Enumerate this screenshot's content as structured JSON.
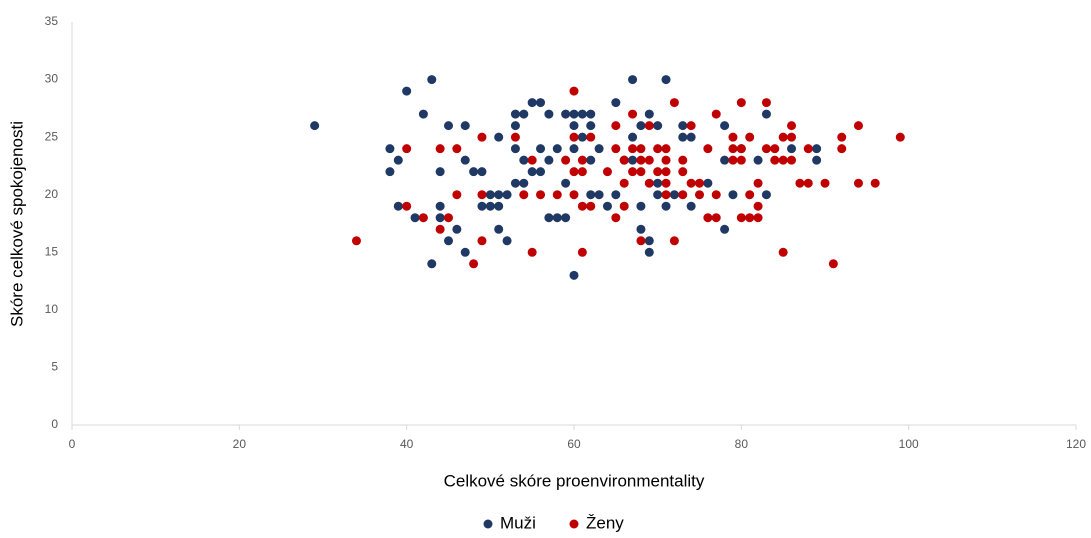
{
  "chart_data": {
    "type": "scatter",
    "x_label": "Celkové skóre proenvironmentality",
    "y_label": "Skóre celkové spokojenosti",
    "xlim": [
      0,
      120
    ],
    "xticks": [
      0,
      20,
      40,
      60,
      80,
      100,
      120
    ],
    "ylim": [
      0,
      35
    ],
    "yticks": [
      0,
      5,
      10,
      15,
      20,
      25,
      30,
      35
    ],
    "legend": "bottom",
    "series": [
      {
        "name": "Muži",
        "color": "#1f3864",
        "x": [
          29,
          38,
          38,
          39,
          39,
          40,
          41,
          42,
          43,
          43,
          44,
          44,
          44,
          45,
          45,
          46,
          47,
          47,
          47,
          48,
          49,
          49,
          50,
          50,
          51,
          51,
          51,
          51,
          52,
          52,
          53,
          53,
          53,
          53,
          54,
          54,
          54,
          55,
          55,
          56,
          56,
          56,
          57,
          57,
          57,
          58,
          58,
          59,
          59,
          59,
          60,
          60,
          60,
          60,
          61,
          61,
          62,
          62,
          62,
          62,
          63,
          63,
          64,
          65,
          65,
          66,
          67,
          67,
          67,
          68,
          68,
          68,
          69,
          69,
          69,
          70,
          70,
          70,
          71,
          71,
          72,
          73,
          73,
          74,
          74,
          76,
          78,
          78,
          78,
          79,
          80,
          82,
          83,
          83,
          86,
          89,
          89
        ],
        "values": [
          26,
          24,
          22,
          23,
          19,
          29,
          18,
          27,
          30,
          14,
          22,
          19,
          18,
          26,
          16,
          17,
          26,
          23,
          15,
          22,
          22,
          19,
          19,
          20,
          25,
          19,
          17,
          20,
          16,
          20,
          27,
          26,
          24,
          21,
          27,
          23,
          21,
          28,
          22,
          28,
          22,
          24,
          27,
          23,
          18,
          18,
          24,
          18,
          27,
          21,
          27,
          26,
          24,
          13,
          27,
          25,
          27,
          26,
          20,
          23,
          20,
          24,
          19,
          28,
          20,
          23,
          30,
          25,
          23,
          26,
          17,
          19,
          27,
          16,
          15,
          26,
          20,
          21,
          30,
          19,
          20,
          26,
          25,
          25,
          19,
          21,
          26,
          23,
          17,
          20,
          24,
          23,
          27,
          20,
          24,
          24,
          23
        ]
      },
      {
        "name": "Ženy",
        "color": "#c00000",
        "x": [
          34,
          40,
          40,
          42,
          44,
          44,
          45,
          46,
          46,
          48,
          49,
          49,
          49,
          53,
          54,
          55,
          55,
          56,
          58,
          59,
          60,
          60,
          60,
          60,
          61,
          61,
          61,
          61,
          62,
          62,
          64,
          65,
          65,
          65,
          66,
          66,
          66,
          67,
          67,
          67,
          68,
          68,
          68,
          68,
          69,
          69,
          69,
          70,
          70,
          71,
          71,
          71,
          71,
          71,
          72,
          72,
          73,
          73,
          73,
          74,
          74,
          75,
          75,
          76,
          76,
          77,
          77,
          77,
          79,
          79,
          79,
          80,
          80,
          80,
          80,
          81,
          81,
          81,
          82,
          82,
          82,
          83,
          83,
          84,
          84,
          85,
          85,
          85,
          86,
          86,
          86,
          87,
          88,
          88,
          90,
          91,
          92,
          92,
          94,
          94,
          96,
          99
        ],
        "values": [
          16,
          24,
          19,
          18,
          24,
          17,
          18,
          24,
          20,
          14,
          25,
          20,
          16,
          25,
          20,
          23,
          15,
          20,
          20,
          23,
          29,
          25,
          22,
          20,
          23,
          22,
          19,
          15,
          25,
          19,
          22,
          26,
          24,
          18,
          23,
          21,
          19,
          27,
          24,
          22,
          24,
          23,
          22,
          16,
          26,
          23,
          21,
          24,
          22,
          24,
          23,
          22,
          21,
          20,
          28,
          16,
          23,
          22,
          20,
          26,
          21,
          21,
          20,
          24,
          18,
          27,
          20,
          18,
          25,
          24,
          23,
          28,
          24,
          23,
          18,
          25,
          20,
          18,
          21,
          19,
          18,
          28,
          24,
          24,
          23,
          25,
          23,
          15,
          26,
          25,
          23,
          21,
          21,
          24,
          21,
          14,
          25,
          24,
          26,
          21,
          21,
          25
        ]
      }
    ]
  }
}
